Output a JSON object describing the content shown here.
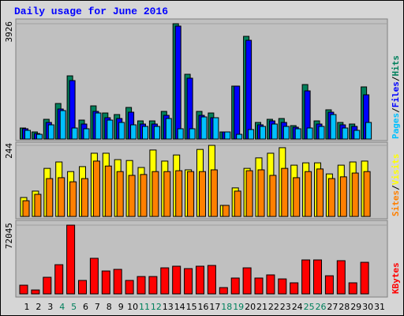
{
  "chart_data": [
    {
      "type": "bar",
      "title": "Daily usage for June 2016",
      "ylim": [
        0,
        3926
      ],
      "yticks": [
        3926
      ],
      "legend_separator": "/",
      "series": [
        {
          "name": "Hits",
          "color": "#00805c",
          "values": [
            376,
            242,
            672,
            1210,
            2151,
            645,
            1129,
            887,
            834,
            1076,
            618,
            618,
            941,
            3926,
            2205,
            941,
            887,
            242,
            1802,
            3496,
            565,
            672,
            699,
            457,
            1855,
            618,
            995,
            565,
            511,
            1775,
            null
          ]
        },
        {
          "name": "Files",
          "color": "#0000ff",
          "values": [
            350,
            188,
            565,
            1022,
            1990,
            511,
            941,
            726,
            699,
            914,
            511,
            511,
            807,
            3845,
            2071,
            807,
            726,
            242,
            1802,
            3361,
            484,
            618,
            565,
            403,
            1640,
            511,
            914,
            484,
            430,
            1506,
            null
          ]
        },
        {
          "name": "Pages",
          "color": "#00c0ff",
          "values": [
            296,
            161,
            484,
            968,
            376,
            350,
            887,
            645,
            565,
            484,
            430,
            430,
            699,
            350,
            350,
            753,
            726,
            242,
            161,
            323,
            430,
            511,
            430,
            350,
            376,
            430,
            834,
            376,
            296,
            565,
            null
          ]
        }
      ]
    },
    {
      "type": "bar",
      "ylim": [
        0,
        244
      ],
      "yticks": [
        244
      ],
      "legend_separator": "/",
      "series": [
        {
          "name": "Visits",
          "color": "#ffff00",
          "values": [
            65,
            87,
            165,
            187,
            154,
            171,
            217,
            217,
            195,
            192,
            168,
            228,
            190,
            211,
            160,
            230,
            244,
            38,
            98,
            165,
            201,
            217,
            236,
            176,
            184,
            184,
            146,
            176,
            187,
            190,
            null
          ]
        },
        {
          "name": "Sites",
          "color": "#ff8000",
          "values": [
            54,
            76,
            130,
            133,
            119,
            130,
            190,
            173,
            154,
            141,
            144,
            154,
            154,
            157,
            154,
            154,
            160,
            38,
            87,
            157,
            160,
            141,
            165,
            133,
            154,
            163,
            130,
            136,
            149,
            154,
            null
          ]
        }
      ]
    },
    {
      "type": "bar",
      "ylim": [
        0,
        72045
      ],
      "yticks": [
        72045
      ],
      "categories": [
        "1",
        "2",
        "3",
        "4",
        "5",
        "6",
        "7",
        "8",
        "9",
        "10",
        "11",
        "12",
        "13",
        "14",
        "15",
        "16",
        "17",
        "18",
        "19",
        "20",
        "21",
        "22",
        "23",
        "24",
        "25",
        "26",
        "27",
        "28",
        "29",
        "30",
        "31"
      ],
      "category_colors": [
        "#000000",
        "#000000",
        "#000000",
        "#00805c",
        "#00805c",
        "#000000",
        "#000000",
        "#000000",
        "#000000",
        "#000000",
        "#00805c",
        "#00805c",
        "#000000",
        "#000000",
        "#000000",
        "#000000",
        "#000000",
        "#00805c",
        "#00805c",
        "#000000",
        "#000000",
        "#000000",
        "#000000",
        "#000000",
        "#00805c",
        "#00805c",
        "#000000",
        "#000000",
        "#000000",
        "#000000",
        "#000000"
      ],
      "series": [
        {
          "name": "KBytes",
          "color": "#ff0000",
          "values": [
            9100,
            4100,
            17400,
            30600,
            72045,
            14100,
            37300,
            24000,
            25700,
            14100,
            18200,
            18200,
            27300,
            29000,
            26500,
            29000,
            29800,
            6600,
            16600,
            27300,
            16600,
            19900,
            15700,
            11600,
            35600,
            35600,
            19000,
            34800,
            11600,
            33100,
            null
          ]
        }
      ]
    }
  ]
}
